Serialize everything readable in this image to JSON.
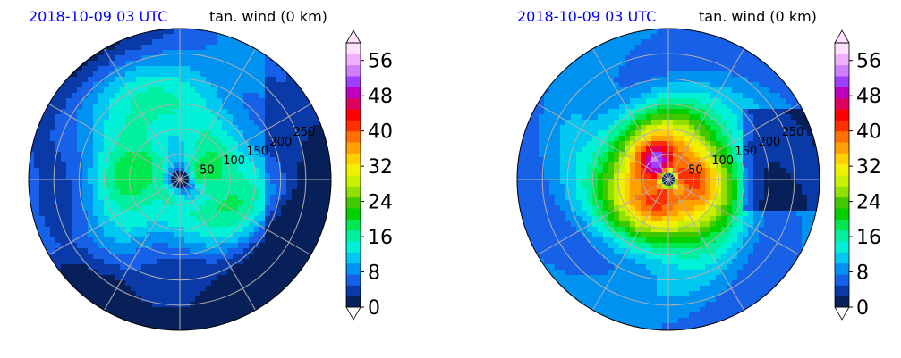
{
  "chart_data": [
    {
      "type": "polar-contour",
      "title_left": "2018-10-09 03 UTC",
      "title_right": "tan. wind (0 km)",
      "radial_ticks": [
        50,
        100,
        150,
        200,
        250
      ],
      "azimuth_lines_deg": [
        0,
        30,
        60,
        90,
        120,
        150,
        180,
        210,
        240,
        270,
        300,
        330
      ],
      "colorbar": {
        "min": 0,
        "max": 60,
        "ticks": [
          0,
          8,
          16,
          24,
          32,
          40,
          48,
          56
        ],
        "extend": "both"
      },
      "features": {
        "peak_wind": 18,
        "core": "weak",
        "sector_low_wind": "south-southwest"
      }
    },
    {
      "type": "polar-contour",
      "title_left": "2018-10-09 03 UTC",
      "title_right": "tan. wind (0 km)",
      "radial_ticks": [
        50,
        100,
        150,
        200,
        250
      ],
      "azimuth_lines_deg": [
        0,
        30,
        60,
        90,
        120,
        150,
        180,
        210,
        240,
        270,
        300,
        330
      ],
      "colorbar": {
        "min": 0,
        "max": 60,
        "ticks": [
          0,
          8,
          16,
          24,
          32,
          40,
          48,
          56
        ],
        "extend": "both"
      },
      "features": {
        "peak_wind": 44,
        "core": "intense",
        "sector_low_wind": "east"
      }
    }
  ],
  "colormap": [
    "#08205a",
    "#0a3aa8",
    "#1760e8",
    "#0092f0",
    "#00c8f0",
    "#00f0d8",
    "#00f0a0",
    "#00e850",
    "#00d000",
    "#40c800",
    "#90e000",
    "#c8f000",
    "#f0f000",
    "#ffd000",
    "#ffa000",
    "#ff7000",
    "#ff3000",
    "#ff0000",
    "#e00060",
    "#c000c0",
    "#a040ff",
    "#d080ff",
    "#f0b0ff",
    "#ffe0ff"
  ]
}
